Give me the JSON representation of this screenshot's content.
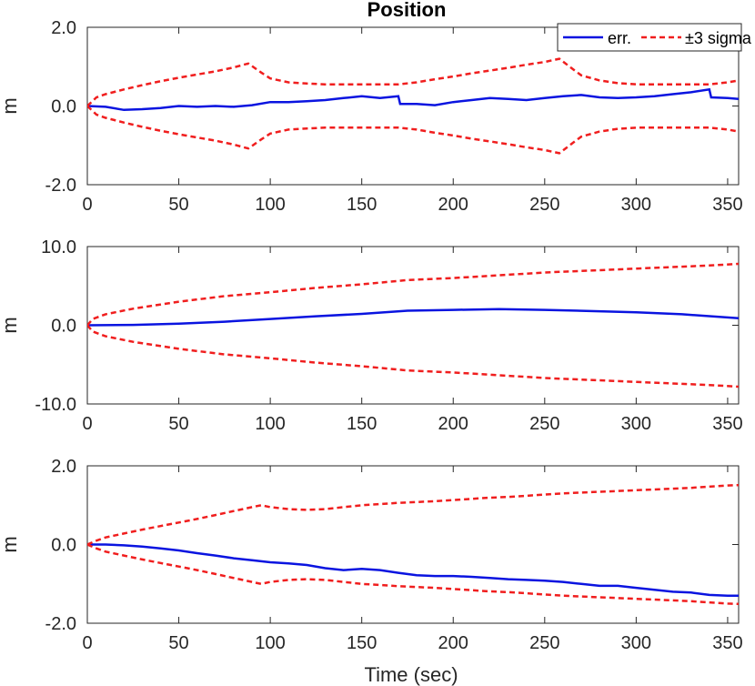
{
  "title": "Position",
  "xlabel": "Time (sec)",
  "legend": {
    "placement": "top-right",
    "entries": [
      {
        "label": "err.",
        "color": "#0a14e0",
        "style": "solid"
      },
      {
        "label": "±3 sigma",
        "color": "#f01e1e",
        "style": "dashed"
      }
    ]
  },
  "colors": {
    "err": "#0a14e0",
    "sigma": "#f01e1e",
    "axes": "#262626"
  },
  "chart_data": [
    {
      "type": "line",
      "ylabel": "m",
      "xlim": [
        0,
        356
      ],
      "ylim": [
        -2,
        2
      ],
      "xticks": [
        0,
        50,
        100,
        150,
        200,
        250,
        300,
        350
      ],
      "xtick_labels": [
        "0",
        "50",
        "100",
        "150",
        "200",
        "250",
        "300",
        "350"
      ],
      "yticks": [
        2,
        0,
        -2
      ],
      "ytick_labels": [
        "2.0",
        "0.0",
        "-2.0"
      ],
      "series": [
        {
          "name": "err.",
          "x": [
            0,
            10,
            20,
            30,
            40,
            50,
            60,
            70,
            80,
            90,
            100,
            110,
            120,
            130,
            140,
            150,
            160,
            170,
            171,
            180,
            190,
            200,
            210,
            220,
            230,
            240,
            250,
            260,
            270,
            280,
            290,
            300,
            310,
            320,
            330,
            340,
            341,
            350,
            356
          ],
          "y": [
            0.0,
            -0.02,
            -0.1,
            -0.08,
            -0.05,
            0.0,
            -0.02,
            0.0,
            -0.02,
            0.02,
            0.1,
            0.1,
            0.12,
            0.15,
            0.2,
            0.25,
            0.2,
            0.25,
            0.05,
            0.05,
            0.02,
            0.1,
            0.15,
            0.2,
            0.18,
            0.15,
            0.2,
            0.25,
            0.28,
            0.22,
            0.2,
            0.22,
            0.25,
            0.3,
            0.35,
            0.42,
            0.22,
            0.2,
            0.18
          ]
        },
        {
          "name": "+3 sigma",
          "x": [
            0,
            5,
            10,
            20,
            30,
            40,
            50,
            60,
            70,
            80,
            88,
            95,
            100,
            110,
            120,
            130,
            140,
            150,
            160,
            170,
            180,
            190,
            200,
            210,
            220,
            230,
            240,
            250,
            258,
            265,
            270,
            280,
            290,
            300,
            310,
            320,
            330,
            340,
            350,
            356
          ],
          "y": [
            0.0,
            0.22,
            0.3,
            0.42,
            0.53,
            0.63,
            0.72,
            0.8,
            0.88,
            0.98,
            1.08,
            0.85,
            0.7,
            0.6,
            0.57,
            0.55,
            0.55,
            0.55,
            0.55,
            0.55,
            0.6,
            0.68,
            0.75,
            0.83,
            0.9,
            0.97,
            1.05,
            1.12,
            1.2,
            0.95,
            0.78,
            0.65,
            0.58,
            0.55,
            0.55,
            0.55,
            0.55,
            0.55,
            0.6,
            0.65
          ]
        },
        {
          "name": "-3 sigma",
          "x": [
            0,
            5,
            10,
            20,
            30,
            40,
            50,
            60,
            70,
            80,
            88,
            95,
            100,
            110,
            120,
            130,
            140,
            150,
            160,
            170,
            180,
            190,
            200,
            210,
            220,
            230,
            240,
            250,
            258,
            265,
            270,
            280,
            290,
            300,
            310,
            320,
            330,
            340,
            350,
            356
          ],
          "y": [
            0.0,
            -0.22,
            -0.3,
            -0.42,
            -0.53,
            -0.63,
            -0.72,
            -0.8,
            -0.88,
            -0.98,
            -1.08,
            -0.85,
            -0.7,
            -0.6,
            -0.57,
            -0.55,
            -0.55,
            -0.55,
            -0.55,
            -0.55,
            -0.6,
            -0.68,
            -0.75,
            -0.83,
            -0.9,
            -0.97,
            -1.05,
            -1.12,
            -1.2,
            -0.95,
            -0.78,
            -0.65,
            -0.58,
            -0.55,
            -0.55,
            -0.55,
            -0.55,
            -0.55,
            -0.6,
            -0.65
          ]
        }
      ]
    },
    {
      "type": "line",
      "ylabel": "m",
      "xlim": [
        0,
        356
      ],
      "ylim": [
        -10,
        10
      ],
      "xticks": [
        0,
        50,
        100,
        150,
        200,
        250,
        300,
        350
      ],
      "xtick_labels": [
        "0",
        "50",
        "100",
        "150",
        "200",
        "250",
        "300",
        "350"
      ],
      "yticks": [
        10,
        0,
        -10
      ],
      "ytick_labels": [
        "10.0",
        "0.0",
        "-10.0"
      ],
      "series": [
        {
          "name": "err.",
          "x": [
            0,
            25,
            50,
            75,
            100,
            125,
            150,
            175,
            200,
            225,
            250,
            275,
            300,
            325,
            356
          ],
          "y": [
            0.0,
            0.05,
            0.2,
            0.45,
            0.8,
            1.15,
            1.45,
            1.85,
            1.95,
            2.05,
            1.95,
            1.8,
            1.65,
            1.4,
            0.9
          ]
        },
        {
          "name": "+3 sigma",
          "x": [
            0,
            3,
            10,
            25,
            50,
            75,
            100,
            125,
            150,
            175,
            200,
            225,
            250,
            275,
            300,
            325,
            340,
            356
          ],
          "y": [
            0.0,
            0.8,
            1.4,
            2.1,
            3.0,
            3.7,
            4.2,
            4.75,
            5.2,
            5.75,
            6.0,
            6.35,
            6.7,
            6.95,
            7.2,
            7.45,
            7.6,
            7.8
          ]
        },
        {
          "name": "-3 sigma",
          "x": [
            0,
            3,
            10,
            25,
            50,
            75,
            100,
            125,
            150,
            175,
            200,
            225,
            250,
            275,
            300,
            325,
            340,
            356
          ],
          "y": [
            0.0,
            -0.8,
            -1.4,
            -2.1,
            -3.0,
            -3.7,
            -4.2,
            -4.75,
            -5.2,
            -5.75,
            -6.0,
            -6.35,
            -6.7,
            -6.95,
            -7.2,
            -7.45,
            -7.6,
            -7.8
          ]
        }
      ]
    },
    {
      "type": "line",
      "ylabel": "m",
      "xlim": [
        0,
        356
      ],
      "ylim": [
        -2,
        2
      ],
      "xticks": [
        0,
        50,
        100,
        150,
        200,
        250,
        300,
        350
      ],
      "xtick_labels": [
        "0",
        "50",
        "100",
        "150",
        "200",
        "250",
        "300",
        "350"
      ],
      "yticks": [
        2,
        0,
        -2
      ],
      "ytick_labels": [
        "2.0",
        "0.0",
        "-2.0"
      ],
      "series": [
        {
          "name": "err.",
          "x": [
            0,
            10,
            20,
            30,
            40,
            50,
            60,
            70,
            80,
            90,
            100,
            110,
            120,
            130,
            140,
            150,
            160,
            170,
            180,
            190,
            200,
            210,
            220,
            230,
            240,
            250,
            260,
            270,
            280,
            290,
            300,
            310,
            320,
            330,
            340,
            350,
            356
          ],
          "y": [
            0.0,
            0.0,
            -0.02,
            -0.05,
            -0.1,
            -0.15,
            -0.22,
            -0.28,
            -0.35,
            -0.4,
            -0.45,
            -0.48,
            -0.52,
            -0.6,
            -0.65,
            -0.62,
            -0.65,
            -0.72,
            -0.78,
            -0.8,
            -0.8,
            -0.82,
            -0.85,
            -0.88,
            -0.9,
            -0.92,
            -0.95,
            -1.0,
            -1.05,
            -1.05,
            -1.1,
            -1.15,
            -1.2,
            -1.22,
            -1.28,
            -1.3,
            -1.3
          ]
        },
        {
          "name": "+3 sigma",
          "x": [
            0,
            5,
            10,
            20,
            30,
            40,
            50,
            60,
            70,
            80,
            90,
            95,
            100,
            110,
            120,
            130,
            140,
            150,
            160,
            170,
            180,
            190,
            200,
            210,
            220,
            230,
            240,
            250,
            260,
            270,
            280,
            290,
            300,
            310,
            320,
            330,
            340,
            350,
            356
          ],
          "y": [
            0.0,
            0.1,
            0.18,
            0.28,
            0.38,
            0.47,
            0.56,
            0.65,
            0.75,
            0.85,
            0.95,
            1.0,
            0.95,
            0.9,
            0.88,
            0.9,
            0.95,
            1.0,
            1.03,
            1.06,
            1.08,
            1.1,
            1.13,
            1.16,
            1.19,
            1.21,
            1.24,
            1.27,
            1.3,
            1.32,
            1.34,
            1.36,
            1.38,
            1.4,
            1.42,
            1.44,
            1.47,
            1.5,
            1.51
          ]
        },
        {
          "name": "-3 sigma",
          "x": [
            0,
            5,
            10,
            20,
            30,
            40,
            50,
            60,
            70,
            80,
            90,
            95,
            100,
            110,
            120,
            130,
            140,
            150,
            160,
            170,
            180,
            190,
            200,
            210,
            220,
            230,
            240,
            250,
            260,
            270,
            280,
            290,
            300,
            310,
            320,
            330,
            340,
            350,
            356
          ],
          "y": [
            0.0,
            -0.1,
            -0.18,
            -0.28,
            -0.38,
            -0.47,
            -0.56,
            -0.65,
            -0.75,
            -0.85,
            -0.95,
            -1.0,
            -0.95,
            -0.9,
            -0.88,
            -0.9,
            -0.95,
            -1.0,
            -1.03,
            -1.06,
            -1.08,
            -1.1,
            -1.13,
            -1.16,
            -1.19,
            -1.21,
            -1.24,
            -1.27,
            -1.3,
            -1.32,
            -1.34,
            -1.36,
            -1.38,
            -1.4,
            -1.42,
            -1.44,
            -1.47,
            -1.5,
            -1.51
          ]
        }
      ]
    }
  ]
}
